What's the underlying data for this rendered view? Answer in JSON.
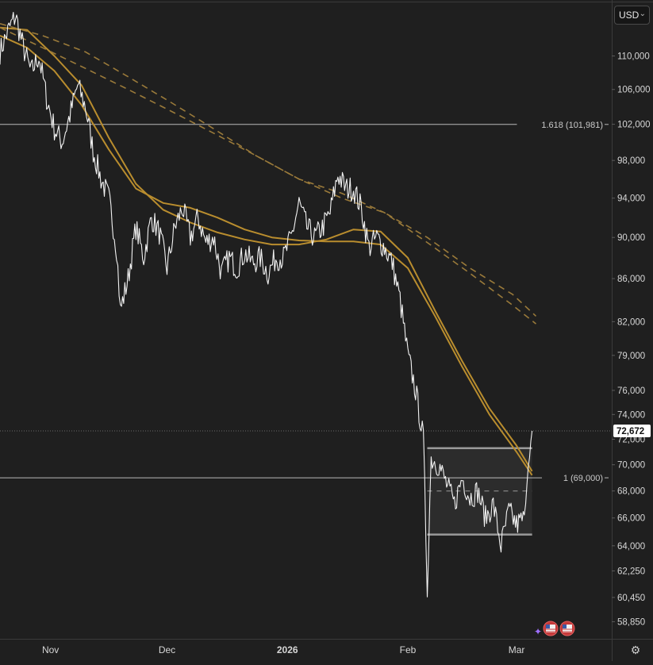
{
  "toolbar": {
    "currency": "USD",
    "currency_chevron": "chevron-down-icon",
    "settings_icon": "gear-icon"
  },
  "colors": {
    "background": "#1f1f1f",
    "price": "#f2f2f2",
    "ma": "#b98d2e",
    "ma_dashed": "#9a7a3a",
    "fib_line": "#b9b9b9",
    "range_box": "#9a9a9a",
    "last_price_tag": "#ffffff"
  },
  "events": {
    "icons": [
      "us-flag-icon",
      "us-flag-icon"
    ]
  },
  "chart_data": {
    "type": "line",
    "y_axis_labels": [
      "110,000",
      "106,000",
      "102,000",
      "98,000",
      "94,000",
      "90,000",
      "86,000",
      "82,000",
      "79,000",
      "76,000",
      "74,000",
      "72,000",
      "70,000",
      "68,000",
      "66,000",
      "64,000",
      "62,250",
      "60,450",
      "58,850"
    ],
    "x_axis_labels": [
      "Nov",
      "Dec",
      "2026",
      "Feb",
      "Mar"
    ],
    "x_range": [
      "2025-10-19",
      "2026-03-11"
    ],
    "y_log_scale": true,
    "grid": false,
    "last_price": 72672,
    "last_price_label": "72,672",
    "horizontal_levels": [
      {
        "label": "1.618 (101,981)",
        "value": 101981
      },
      {
        "label": "1 (69,000)",
        "value": 69000
      }
    ],
    "range_box": {
      "x": [
        "2026-02-06",
        "2026-03-05"
      ],
      "top": 71300,
      "mid": 68000,
      "bottom": 64800
    },
    "series": [
      {
        "style": "price",
        "x": [
          "2025-10-19",
          "2025-10-21",
          "2025-10-23",
          "2025-10-25",
          "2025-10-27",
          "2025-10-29",
          "2025-10-31",
          "2025-11-02",
          "2025-11-04",
          "2025-11-06",
          "2025-11-08",
          "2025-11-10",
          "2025-11-12",
          "2025-11-14",
          "2025-11-16",
          "2025-11-18",
          "2025-11-19",
          "2025-11-21",
          "2025-11-23",
          "2025-11-25",
          "2025-11-27",
          "2025-11-29",
          "2025-12-01",
          "2025-12-03",
          "2025-12-05",
          "2025-12-07",
          "2025-12-09",
          "2025-12-11",
          "2025-12-13",
          "2025-12-15",
          "2025-12-17",
          "2025-12-19",
          "2025-12-21",
          "2025-12-23",
          "2025-12-25",
          "2025-12-27",
          "2025-12-29",
          "2025-12-31",
          "2026-01-02",
          "2026-01-04",
          "2026-01-06",
          "2026-01-08",
          "2026-01-10",
          "2026-01-12",
          "2026-01-14",
          "2026-01-16",
          "2026-01-18",
          "2026-01-20",
          "2026-01-22",
          "2026-01-24",
          "2026-01-26",
          "2026-01-28",
          "2026-01-30",
          "2026-02-01",
          "2026-02-03",
          "2026-02-05",
          "2026-02-06",
          "2026-02-07",
          "2026-02-09",
          "2026-02-11",
          "2026-02-13",
          "2026-02-15",
          "2026-02-17",
          "2026-02-19",
          "2026-02-21",
          "2026-02-23",
          "2026-02-25",
          "2026-02-27",
          "2026-03-01",
          "2026-03-03",
          "2026-03-04",
          "2026-03-05"
        ],
        "values": [
          110500,
          113000,
          115000,
          111000,
          108000,
          110000,
          105000,
          101500,
          100000,
          103000,
          106500,
          104000,
          99000,
          96000,
          94000,
          89000,
          83000,
          86000,
          91000,
          88000,
          92000,
          90500,
          87000,
          91000,
          93000,
          90000,
          92000,
          89500,
          90000,
          86500,
          88000,
          87000,
          88500,
          87500,
          88000,
          86500,
          88000,
          88000,
          90000,
          93500,
          91000,
          90000,
          91000,
          92500,
          96500,
          95000,
          95000,
          93000,
          89000,
          90000,
          89000,
          87500,
          84000,
          79000,
          76000,
          72000,
          61000,
          70500,
          70000,
          68500,
          67000,
          69000,
          67500,
          68000,
          66000,
          67000,
          64000,
          66500,
          65500,
          66000,
          70000,
          72672
        ]
      },
      {
        "style": "ma-solid",
        "x": [
          "2025-10-19",
          "2025-10-26",
          "2025-11-02",
          "2025-11-09",
          "2025-11-16",
          "2025-11-23",
          "2025-11-30",
          "2025-12-07",
          "2025-12-14",
          "2025-12-21",
          "2025-12-28",
          "2026-01-04",
          "2026-01-11",
          "2026-01-18",
          "2026-01-25",
          "2026-02-01",
          "2026-02-08",
          "2026-02-15",
          "2026-02-22",
          "2026-03-01",
          "2026-03-05"
        ],
        "values": [
          113500,
          113200,
          110000,
          106500,
          100500,
          95500,
          92800,
          91500,
          90500,
          89800,
          89300,
          89300,
          89800,
          90800,
          90600,
          88000,
          83000,
          78500,
          74500,
          71500,
          69500
        ]
      },
      {
        "style": "ma-solid",
        "x": [
          "2025-10-19",
          "2025-10-26",
          "2025-11-02",
          "2025-11-09",
          "2025-11-16",
          "2025-11-23",
          "2025-11-30",
          "2025-12-07",
          "2025-12-14",
          "2025-12-21",
          "2025-12-28",
          "2026-01-04",
          "2026-01-11",
          "2026-01-18",
          "2026-01-25",
          "2026-02-01",
          "2026-02-08",
          "2026-02-15",
          "2026-02-22",
          "2026-03-01",
          "2026-03-05"
        ],
        "values": [
          112500,
          111000,
          108200,
          104200,
          99200,
          95000,
          93500,
          93000,
          92000,
          90800,
          90000,
          89700,
          89600,
          89600,
          89300,
          87000,
          82500,
          78000,
          74000,
          71000,
          69200
        ]
      },
      {
        "style": "ma-dashed",
        "x": [
          "2025-10-19",
          "2025-10-30",
          "2025-11-10",
          "2025-11-21",
          "2025-12-02",
          "2025-12-13",
          "2025-12-24",
          "2026-01-04",
          "2026-01-15",
          "2026-01-26",
          "2026-02-06",
          "2026-02-17",
          "2026-02-28",
          "2026-03-06"
        ],
        "values": [
          114000,
          112500,
          110500,
          107500,
          104500,
          101500,
          98500,
          96000,
          94000,
          92500,
          90000,
          87000,
          84500,
          82500
        ]
      },
      {
        "style": "ma-dashed",
        "x": [
          "2025-10-19",
          "2025-10-30",
          "2025-11-10",
          "2025-11-21",
          "2025-12-02",
          "2025-12-13",
          "2025-12-24",
          "2026-01-04",
          "2026-01-15",
          "2026-01-26",
          "2026-02-06",
          "2026-02-17",
          "2026-02-28",
          "2026-03-06"
        ],
        "values": [
          113500,
          111000,
          108500,
          106000,
          103500,
          101000,
          98500,
          96000,
          94500,
          92500,
          89500,
          86500,
          83500,
          81800
        ]
      }
    ]
  }
}
